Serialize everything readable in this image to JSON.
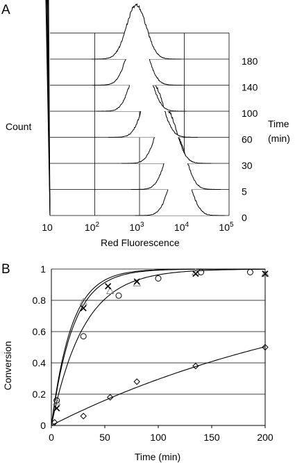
{
  "panel_a": {
    "label": "A",
    "ylabel": "Count",
    "xlabel": "Red Fluorescence",
    "time_label_line1": "Time",
    "time_label_line2": "(min)",
    "x_ticks": [
      {
        "base": "10",
        "exp": ""
      },
      {
        "base": "10",
        "exp": "2"
      },
      {
        "base": "10",
        "exp": "3"
      },
      {
        "base": "10",
        "exp": "4"
      },
      {
        "base": "10",
        "exp": "5"
      }
    ]
  },
  "panel_b": {
    "label": "B"
  },
  "chart_data": [
    {
      "type": "area",
      "xlabel": "Red Fluorescence",
      "ylabel": "Count",
      "x_scale": "log",
      "xlim": [
        10,
        100000
      ],
      "series_label": "Time (min)",
      "series": [
        {
          "name": "0",
          "peak_x": 8000
        },
        {
          "name": "5",
          "peak_x": 6500
        },
        {
          "name": "30",
          "peak_x": 4000
        },
        {
          "name": "60",
          "peak_x": 2000
        },
        {
          "name": "100",
          "peak_x": 1100
        },
        {
          "name": "140",
          "peak_x": 900
        },
        {
          "name": "180",
          "peak_x": 850
        }
      ]
    },
    {
      "type": "scatter",
      "xlabel": "Time (min)",
      "ylabel": "Conversion",
      "xlim": [
        0,
        200
      ],
      "ylim": [
        0,
        1
      ],
      "x_ticks": [
        0,
        50,
        100,
        150,
        200
      ],
      "y_ticks": [
        0,
        0.2,
        0.4,
        0.6,
        0.8,
        1
      ],
      "grid": "horizontal",
      "series": [
        {
          "marker": "triangle",
          "x": [
            5,
            30,
            55,
            80,
            135,
            200
          ],
          "y": [
            0.15,
            0.79,
            0.86,
            0.91,
            0.98,
            0.97
          ],
          "fit_k": 0.053
        },
        {
          "marker": "x",
          "x": [
            5,
            30,
            53,
            80,
            135,
            200
          ],
          "y": [
            0.11,
            0.75,
            0.89,
            0.92,
            0.97,
            0.97
          ],
          "fit_k": 0.049
        },
        {
          "marker": "circle",
          "x": [
            5,
            30,
            63,
            100,
            140,
            186
          ],
          "y": [
            0.16,
            0.57,
            0.83,
            0.94,
            0.98,
            0.98
          ],
          "fit_k": 0.033
        },
        {
          "marker": "diamond",
          "x": [
            3,
            30,
            55,
            80,
            135,
            200
          ],
          "y": [
            0.02,
            0.06,
            0.18,
            0.28,
            0.38,
            0.5
          ],
          "fit_k": 0.0035
        }
      ]
    }
  ]
}
